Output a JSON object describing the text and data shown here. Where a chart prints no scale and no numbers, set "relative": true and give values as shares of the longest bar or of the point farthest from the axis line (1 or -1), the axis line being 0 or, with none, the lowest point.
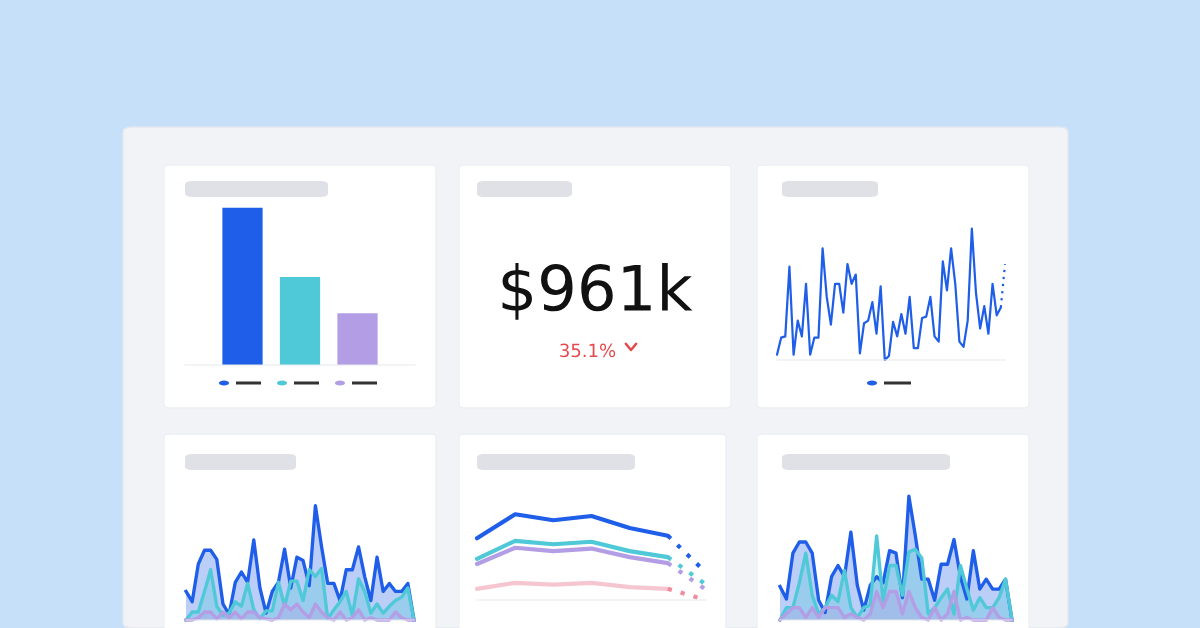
{
  "chart_data": [
    {
      "type": "bar",
      "relative": true,
      "categories": [
        null,
        null,
        null
      ],
      "values": [
        1,
        0.56,
        0.33
      ],
      "colors": [
        "#1f5ee8",
        "#4fc8d8",
        "#b39ee6"
      ]
    },
    {
      "type": "other",
      "annotations": [
        "$961k",
        "35.1%"
      ]
    },
    {
      "type": "line",
      "relative": true,
      "categories": [
        null,
        null,
        null,
        null,
        null,
        null,
        null,
        null,
        null,
        null,
        null,
        null,
        null,
        null,
        null,
        null,
        null,
        null,
        null,
        null,
        null,
        null,
        null,
        null,
        null,
        null,
        null,
        null,
        null,
        null,
        null,
        null,
        null,
        null,
        null,
        null,
        null,
        null,
        null,
        null,
        null,
        null,
        null,
        null,
        null,
        null,
        null,
        null,
        null,
        null,
        null,
        null,
        null,
        null,
        null,
        null
      ],
      "series": [
        {
          "color": "#1f5ee8",
          "line_style": "solid",
          "values": [
            0.04,
            0.17,
            0.18,
            0.71,
            0.04,
            0.3,
            0.18,
            0.58,
            0.04,
            0.17,
            0.17,
            0.85,
            0.48,
            0.27,
            0.58,
            0.58,
            0.36,
            0.73,
            0.58,
            0.65,
            0.05,
            0.28,
            0.3,
            0.44,
            0.2,
            0.56,
            0.0,
            0.03,
            0.29,
            0.18,
            0.35,
            0.2,
            0.48,
            0.09,
            0.09,
            0.32,
            0.33,
            0.48,
            0.18,
            0.14,
            0.75,
            0.53,
            0.85,
            0.58,
            0.14,
            0.1,
            0.3,
            1.0,
            0.51,
            0.24,
            0.41,
            0.2,
            0.58,
            0.34,
            0.4,
            null
          ]
        },
        {
          "color": "#1f5ee8",
          "line_style": "dotted",
          "values": [
            null,
            null,
            null,
            null,
            null,
            null,
            null,
            null,
            null,
            null,
            null,
            null,
            null,
            null,
            null,
            null,
            null,
            null,
            null,
            null,
            null,
            null,
            null,
            null,
            null,
            null,
            null,
            null,
            null,
            null,
            null,
            null,
            null,
            null,
            null,
            null,
            null,
            null,
            null,
            null,
            null,
            null,
            null,
            null,
            null,
            null,
            null,
            null,
            null,
            null,
            null,
            null,
            null,
            null,
            0.4,
            0.73
          ]
        }
      ]
    },
    {
      "type": "area",
      "relative": true,
      "categories": [
        null,
        null,
        null,
        null,
        null,
        null,
        null,
        null,
        null,
        null,
        null,
        null,
        null,
        null,
        null,
        null,
        null,
        null,
        null,
        null,
        null,
        null,
        null,
        null,
        null,
        null,
        null,
        null,
        null,
        null,
        null,
        null,
        null,
        null,
        null,
        null,
        null,
        null
      ],
      "series": [
        {
          "color": "#1f5ee8",
          "values": [
            0.25,
            0.16,
            0.49,
            0.61,
            0.61,
            0.53,
            0.14,
            0.05,
            0.33,
            0.42,
            0.33,
            0.7,
            0.28,
            0.06,
            0.25,
            0.33,
            0.62,
            0.28,
            0.55,
            0.52,
            0.3,
            1.0,
            0.64,
            0.32,
            0.32,
            0.17,
            0.44,
            0.44,
            0.64,
            0.38,
            0.17,
            0.55,
            0.25,
            0.32,
            0.25,
            0.25,
            0.32,
            0
          ]
        },
        {
          "color": "#4fc8d8",
          "values": [
            0,
            0.07,
            0.07,
            0.25,
            0.44,
            0.12,
            0.04,
            0.06,
            0.16,
            0.12,
            0.32,
            0.09,
            0.01,
            0.08,
            0.08,
            0.33,
            0.12,
            0.34,
            0.34,
            0.17,
            0.44,
            0.38,
            0.45,
            0.01,
            0.09,
            0.16,
            0.25,
            0.04,
            0.36,
            0.25,
            0.06,
            0.14,
            0.06,
            0.12,
            0.17,
            0.2,
            0.28,
            0
          ]
        },
        {
          "color": "#b39ee6",
          "values": [
            0,
            0,
            0.02,
            0.07,
            0.07,
            0.01,
            0.07,
            0.02,
            0.07,
            0.01,
            0.07,
            0.07,
            0.02,
            0.01,
            0,
            0.02,
            0.14,
            0.09,
            0.14,
            0.07,
            0.02,
            0.14,
            0.07,
            0.02,
            0,
            0.07,
            0,
            0.02,
            0.09,
            0,
            0.02,
            0,
            0,
            0,
            0.07,
            0.02,
            0,
            0
          ]
        }
      ]
    },
    {
      "type": "line",
      "relative": true,
      "categories": [
        null,
        null,
        null,
        null,
        null,
        null,
        null
      ],
      "series": [
        {
          "color": "#1f5ee8",
          "line_style": "solid",
          "values": [
            0.72,
            1.0,
            0.93,
            0.98,
            0.84,
            0.75,
            null
          ]
        },
        {
          "color": "#4fc8d8",
          "line_style": "solid",
          "values": [
            0.48,
            0.69,
            0.65,
            0.68,
            0.57,
            0.5,
            null
          ]
        },
        {
          "color": "#b39ee6",
          "line_style": "solid",
          "values": [
            0.42,
            0.61,
            0.57,
            0.6,
            0.5,
            0.43,
            null
          ]
        },
        {
          "color": "#f6c6d0",
          "line_style": "solid",
          "values": [
            0.13,
            0.2,
            0.18,
            0.2,
            0.15,
            0.13,
            null
          ]
        },
        {
          "color": "#1f5ee8",
          "line_style": "dotted",
          "values": [
            null,
            null,
            null,
            null,
            null,
            0.75,
            0.32
          ]
        },
        {
          "color": "#4fc8d8",
          "line_style": "dotted",
          "values": [
            null,
            null,
            null,
            null,
            null,
            0.5,
            0.18
          ]
        },
        {
          "color": "#b39ee6",
          "line_style": "dotted",
          "values": [
            null,
            null,
            null,
            null,
            null,
            0.43,
            0.12
          ]
        },
        {
          "color": "#f28b9b",
          "line_style": "dotted",
          "values": [
            null,
            null,
            null,
            null,
            null,
            0.13,
            0
          ]
        }
      ]
    },
    {
      "type": "area",
      "relative": true,
      "categories": [
        null,
        null,
        null,
        null,
        null,
        null,
        null,
        null,
        null,
        null,
        null,
        null,
        null,
        null,
        null,
        null,
        null,
        null,
        null,
        null,
        null,
        null,
        null,
        null,
        null,
        null,
        null,
        null,
        null,
        null,
        null,
        null,
        null,
        null,
        null,
        null,
        null
      ],
      "series": [
        {
          "color": "#1f5ee8",
          "values": [
            0.27,
            0.17,
            0.54,
            0.63,
            0.63,
            0.54,
            0.16,
            0.06,
            0.35,
            0.44,
            0.35,
            0.71,
            0.28,
            0.08,
            0.28,
            0.35,
            0.3,
            0.56,
            0.54,
            0.18,
            1.0,
            0.68,
            0.33,
            0.33,
            0.16,
            0.45,
            0.45,
            0.65,
            0.35,
            0.17,
            0.56,
            0.25,
            0.33,
            0.25,
            0.25,
            0.33,
            0
          ]
        },
        {
          "color": "#4fc8d8",
          "values": [
            0,
            0.1,
            0.1,
            0.3,
            0.54,
            0.2,
            0.05,
            0.1,
            0.2,
            0.15,
            0.4,
            0.1,
            0.02,
            0.1,
            0.12,
            0.68,
            0.15,
            0.44,
            0.44,
            0.2,
            0.55,
            0.57,
            0.5,
            0.05,
            0.1,
            0.18,
            0.25,
            0.05,
            0.44,
            0.25,
            0.08,
            0.18,
            0.1,
            0.1,
            0.18,
            0.33,
            0
          ]
        },
        {
          "color": "#b39ee6",
          "values": [
            0,
            0.05,
            0.1,
            0.1,
            0.02,
            0.1,
            0.02,
            0.1,
            0.1,
            0.1,
            0.02,
            0.05,
            0.02,
            0,
            0.05,
            0.23,
            0.1,
            0.23,
            0.23,
            0.05,
            0.23,
            0.1,
            0.02,
            0,
            0.1,
            0,
            0.05,
            0.23,
            0,
            0.02,
            0,
            0,
            0,
            0.1,
            0.02,
            0,
            0
          ]
        }
      ]
    }
  ]
}
